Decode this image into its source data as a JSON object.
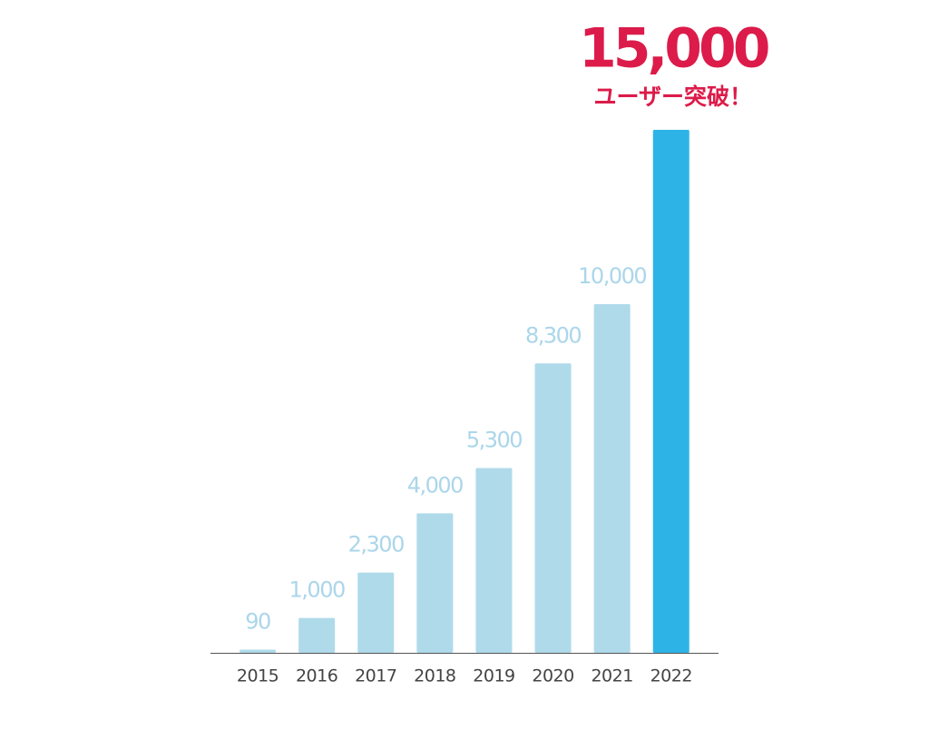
{
  "chart_data": {
    "type": "bar",
    "categories": [
      "2015",
      "2016",
      "2017",
      "2018",
      "2019",
      "2020",
      "2021",
      "2022"
    ],
    "values": [
      90,
      1000,
      2300,
      4000,
      5300,
      8300,
      10000,
      15000
    ],
    "value_labels": [
      "90",
      "1,000",
      "2,300",
      "4,000",
      "5,300",
      "8,300",
      "10,000",
      "15,000"
    ],
    "colors": [
      "#afdaea",
      "#afdaea",
      "#afdaea",
      "#afdaea",
      "#afdaea",
      "#afdaea",
      "#afdaea",
      "#2eb3e7"
    ],
    "label_colors": [
      "#abd6ea",
      "#abd6ea",
      "#abd6ea",
      "#abd6ea",
      "#abd6ea",
      "#abd6ea",
      "#abd6ea",
      "#dc1b4a"
    ],
    "annotation": "ユーザー突破！",
    "ylim": [
      0,
      15000
    ]
  }
}
